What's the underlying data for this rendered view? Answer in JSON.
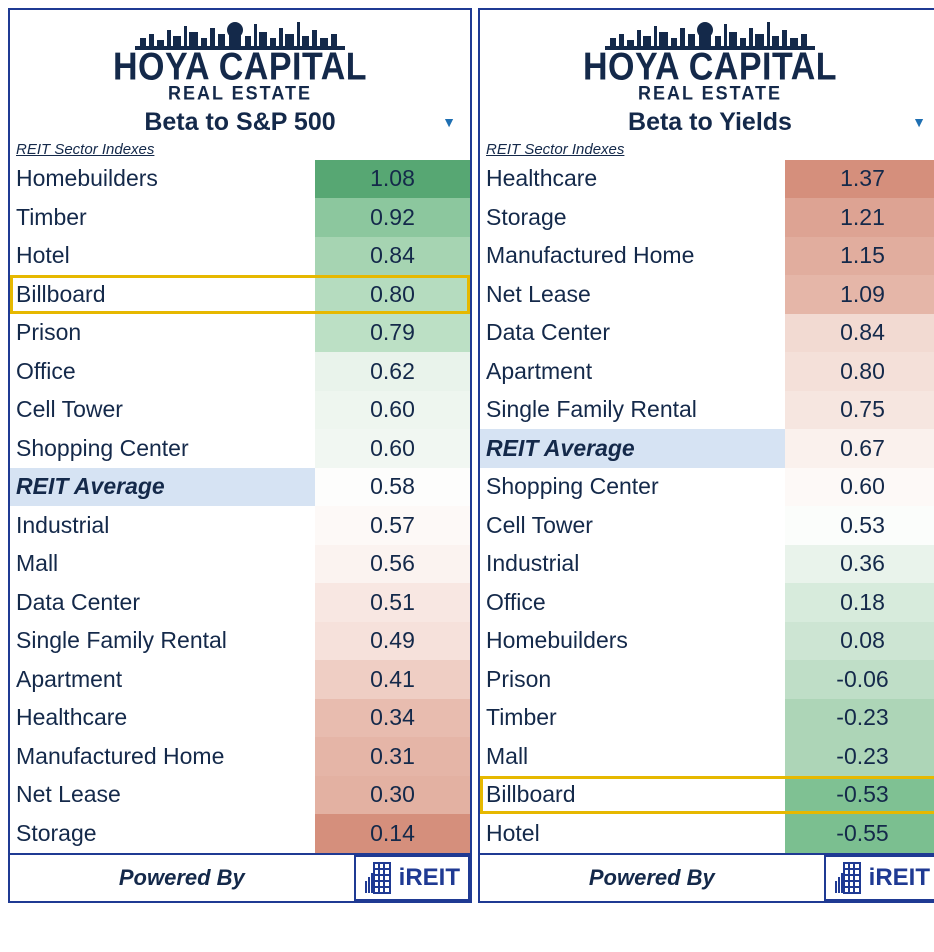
{
  "brand": {
    "main": "HOYA CAPITAL",
    "sub": "REAL ESTATE"
  },
  "subheader": "REIT Sector Indexes",
  "footer": {
    "powered": "Powered By",
    "ireit": "iREIT"
  },
  "colors": {
    "border": "#1f3a93",
    "text": "#14294a",
    "highlight": "#e6b800",
    "avg_bg": "#d6e3f3"
  },
  "panels": [
    {
      "title": "Beta to S&P 500",
      "avg_label": "REIT Average",
      "rows": [
        {
          "label": "Homebuilders",
          "value": "1.08",
          "color": "#57a773",
          "avg": false,
          "highlight": false
        },
        {
          "label": "Timber",
          "value": "0.92",
          "color": "#8cc79e",
          "avg": false,
          "highlight": false
        },
        {
          "label": "Hotel",
          "value": "0.84",
          "color": "#a6d4b2",
          "avg": false,
          "highlight": false
        },
        {
          "label": "Billboard",
          "value": "0.80",
          "color": "#b5dcbf",
          "avg": false,
          "highlight": true
        },
        {
          "label": "Prison",
          "value": "0.79",
          "color": "#bce0c5",
          "avg": false,
          "highlight": false
        },
        {
          "label": "Office",
          "value": "0.62",
          "color": "#e9f3eb",
          "avg": false,
          "highlight": false
        },
        {
          "label": "Cell Tower",
          "value": "0.60",
          "color": "#eef6ef",
          "avg": false,
          "highlight": false
        },
        {
          "label": "Shopping Center",
          "value": "0.60",
          "color": "#f1f7f2",
          "avg": false,
          "highlight": false
        },
        {
          "label": "REIT Average",
          "value": "0.58",
          "color": "#fdfdfc",
          "avg": true,
          "highlight": false
        },
        {
          "label": "Industrial",
          "value": "0.57",
          "color": "#fdf9f7",
          "avg": false,
          "highlight": false
        },
        {
          "label": "Mall",
          "value": "0.56",
          "color": "#fbf3f0",
          "avg": false,
          "highlight": false
        },
        {
          "label": "Data Center",
          "value": "0.51",
          "color": "#f8e7e2",
          "avg": false,
          "highlight": false
        },
        {
          "label": "Single Family Rental",
          "value": "0.49",
          "color": "#f6e1db",
          "avg": false,
          "highlight": false
        },
        {
          "label": "Apartment",
          "value": "0.41",
          "color": "#efcec4",
          "avg": false,
          "highlight": false
        },
        {
          "label": "Healthcare",
          "value": "0.34",
          "color": "#e8bcaf",
          "avg": false,
          "highlight": false
        },
        {
          "label": "Manufactured Home",
          "value": "0.31",
          "color": "#e5b5a7",
          "avg": false,
          "highlight": false
        },
        {
          "label": "Net Lease",
          "value": "0.30",
          "color": "#e3b1a2",
          "avg": false,
          "highlight": false
        },
        {
          "label": "Storage",
          "value": "0.14",
          "color": "#d58f7c",
          "avg": false,
          "highlight": false
        }
      ]
    },
    {
      "title": "Beta to Yields",
      "avg_label": "REIT Average",
      "rows": [
        {
          "label": "Healthcare",
          "value": "1.37",
          "color": "#d58f7c",
          "avg": false,
          "highlight": false
        },
        {
          "label": "Storage",
          "value": "1.21",
          "color": "#dda393",
          "avg": false,
          "highlight": false
        },
        {
          "label": "Manufactured Home",
          "value": "1.15",
          "color": "#e1ad9e",
          "avg": false,
          "highlight": false
        },
        {
          "label": "Net Lease",
          "value": "1.09",
          "color": "#e5b6a8",
          "avg": false,
          "highlight": false
        },
        {
          "label": "Data Center",
          "value": "0.84",
          "color": "#f2dad2",
          "avg": false,
          "highlight": false
        },
        {
          "label": "Apartment",
          "value": "0.80",
          "color": "#f4e0d9",
          "avg": false,
          "highlight": false
        },
        {
          "label": "Single Family Rental",
          "value": "0.75",
          "color": "#f6e6e0",
          "avg": false,
          "highlight": false
        },
        {
          "label": "REIT Average",
          "value": "0.67",
          "color": "#faf1ed",
          "avg": true,
          "highlight": false
        },
        {
          "label": "Shopping Center",
          "value": "0.60",
          "color": "#fdf9f7",
          "avg": false,
          "highlight": false
        },
        {
          "label": "Cell Tower",
          "value": "0.53",
          "color": "#fbfdfb",
          "avg": false,
          "highlight": false
        },
        {
          "label": "Industrial",
          "value": "0.36",
          "color": "#e9f3eb",
          "avg": false,
          "highlight": false
        },
        {
          "label": "Office",
          "value": "0.18",
          "color": "#d7ebdc",
          "avg": false,
          "highlight": false
        },
        {
          "label": "Homebuilders",
          "value": "0.08",
          "color": "#cde5d3",
          "avg": false,
          "highlight": false
        },
        {
          "label": "Prison",
          "value": "-0.06",
          "color": "#bfdec7",
          "avg": false,
          "highlight": false
        },
        {
          "label": "Timber",
          "value": "-0.23",
          "color": "#add5b7",
          "avg": false,
          "highlight": false
        },
        {
          "label": "Mall",
          "value": "-0.23",
          "color": "#add5b7",
          "avg": false,
          "highlight": false
        },
        {
          "label": "Billboard",
          "value": "-0.53",
          "color": "#7fc193",
          "avg": false,
          "highlight": true
        },
        {
          "label": "Hotel",
          "value": "-0.55",
          "color": "#7bbf90",
          "avg": false,
          "highlight": false
        }
      ]
    }
  ]
}
